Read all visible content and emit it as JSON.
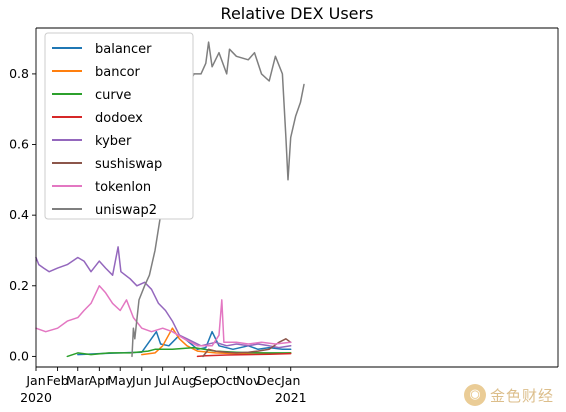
{
  "chart_data": {
    "type": "line",
    "title": "Relative DEX Users",
    "xlabel": "",
    "ylabel": "",
    "xlim": [
      "2020-01-01",
      "2022-01-20"
    ],
    "ylim": [
      -0.03,
      0.93
    ],
    "yticks": [
      0.0,
      0.2,
      0.4,
      0.6,
      0.8
    ],
    "ytick_labels": [
      "0.0",
      "0.2",
      "0.4",
      "0.6",
      "0.8"
    ],
    "xticks": [
      {
        "date": "2020-01-01",
        "label": "Jan",
        "sublabel": "2020"
      },
      {
        "date": "2020-02-01",
        "label": "Feb",
        "sublabel": ""
      },
      {
        "date": "2020-03-01",
        "label": "Mar",
        "sublabel": ""
      },
      {
        "date": "2020-04-01",
        "label": "Apr",
        "sublabel": ""
      },
      {
        "date": "2020-05-01",
        "label": "May",
        "sublabel": ""
      },
      {
        "date": "2020-06-01",
        "label": "Jun",
        "sublabel": ""
      },
      {
        "date": "2020-07-01",
        "label": "Jul",
        "sublabel": ""
      },
      {
        "date": "2020-08-01",
        "label": "Aug",
        "sublabel": ""
      },
      {
        "date": "2020-09-01",
        "label": "Sep",
        "sublabel": ""
      },
      {
        "date": "2020-10-01",
        "label": "Oct",
        "sublabel": ""
      },
      {
        "date": "2020-11-01",
        "label": "Nov",
        "sublabel": ""
      },
      {
        "date": "2020-12-01",
        "label": "Dec",
        "sublabel": ""
      },
      {
        "date": "2021-01-01",
        "label": "Jan",
        "sublabel": "2021"
      }
    ],
    "grid": false,
    "legend_position": "top-left",
    "series": [
      {
        "name": "balancer",
        "color": "#1f77b4",
        "points": [
          [
            "2020-03-01",
            0.005
          ],
          [
            "2020-04-01",
            0.008
          ],
          [
            "2020-05-01",
            0.01
          ],
          [
            "2020-06-01",
            0.012
          ],
          [
            "2020-06-22",
            0.07
          ],
          [
            "2020-06-28",
            0.035
          ],
          [
            "2020-07-10",
            0.03
          ],
          [
            "2020-07-25",
            0.06
          ],
          [
            "2020-08-05",
            0.045
          ],
          [
            "2020-08-20",
            0.02
          ],
          [
            "2020-09-01",
            0.025
          ],
          [
            "2020-09-10",
            0.07
          ],
          [
            "2020-09-20",
            0.03
          ],
          [
            "2020-10-10",
            0.02
          ],
          [
            "2020-11-01",
            0.03
          ],
          [
            "2020-11-15",
            0.02
          ],
          [
            "2020-12-01",
            0.025
          ],
          [
            "2020-12-20",
            0.02
          ],
          [
            "2021-01-01",
            0.02
          ]
        ]
      },
      {
        "name": "bancor",
        "color": "#ff7f0e",
        "points": [
          [
            "2020-06-01",
            0.005
          ],
          [
            "2020-06-20",
            0.01
          ],
          [
            "2020-07-01",
            0.03
          ],
          [
            "2020-07-15",
            0.08
          ],
          [
            "2020-07-25",
            0.05
          ],
          [
            "2020-08-05",
            0.03
          ],
          [
            "2020-08-20",
            0.015
          ],
          [
            "2020-09-15",
            0.01
          ],
          [
            "2020-10-15",
            0.008
          ],
          [
            "2020-11-15",
            0.01
          ],
          [
            "2020-12-15",
            0.008
          ],
          [
            "2021-01-01",
            0.01
          ]
        ]
      },
      {
        "name": "curve",
        "color": "#2ca02c",
        "points": [
          [
            "2020-02-15",
            0.0
          ],
          [
            "2020-03-01",
            0.01
          ],
          [
            "2020-03-20",
            0.005
          ],
          [
            "2020-04-15",
            0.01
          ],
          [
            "2020-05-15",
            0.01
          ],
          [
            "2020-06-10",
            0.015
          ],
          [
            "2020-06-20",
            0.02
          ],
          [
            "2020-07-15",
            0.02
          ],
          [
            "2020-08-15",
            0.025
          ],
          [
            "2020-09-15",
            0.015
          ],
          [
            "2020-10-15",
            0.012
          ],
          [
            "2020-11-15",
            0.01
          ],
          [
            "2020-12-15",
            0.01
          ],
          [
            "2021-01-01",
            0.01
          ]
        ]
      },
      {
        "name": "dodoex",
        "color": "#d62728",
        "points": [
          [
            "2020-08-20",
            0.0
          ],
          [
            "2020-09-01",
            0.002
          ],
          [
            "2020-10-01",
            0.004
          ],
          [
            "2020-11-01",
            0.005
          ],
          [
            "2020-12-01",
            0.006
          ],
          [
            "2021-01-01",
            0.008
          ]
        ]
      },
      {
        "name": "kyber",
        "color": "#9467bd",
        "points": [
          [
            "2020-01-01",
            0.28
          ],
          [
            "2020-01-05",
            0.26
          ],
          [
            "2020-01-12",
            0.25
          ],
          [
            "2020-01-20",
            0.24
          ],
          [
            "2020-02-01",
            0.25
          ],
          [
            "2020-02-15",
            0.26
          ],
          [
            "2020-03-01",
            0.28
          ],
          [
            "2020-03-10",
            0.27
          ],
          [
            "2020-03-20",
            0.24
          ],
          [
            "2020-04-01",
            0.27
          ],
          [
            "2020-04-10",
            0.25
          ],
          [
            "2020-04-20",
            0.23
          ],
          [
            "2020-04-28",
            0.31
          ],
          [
            "2020-05-02",
            0.24
          ],
          [
            "2020-05-15",
            0.22
          ],
          [
            "2020-05-25",
            0.2
          ],
          [
            "2020-06-05",
            0.21
          ],
          [
            "2020-06-15",
            0.19
          ],
          [
            "2020-06-25",
            0.15
          ],
          [
            "2020-07-05",
            0.13
          ],
          [
            "2020-07-15",
            0.1
          ],
          [
            "2020-07-25",
            0.06
          ],
          [
            "2020-08-05",
            0.05
          ],
          [
            "2020-08-15",
            0.04
          ],
          [
            "2020-08-25",
            0.03
          ],
          [
            "2020-09-15",
            0.04
          ],
          [
            "2020-10-01",
            0.03
          ],
          [
            "2020-10-15",
            0.035
          ],
          [
            "2020-11-01",
            0.03
          ],
          [
            "2020-11-15",
            0.035
          ],
          [
            "2020-12-01",
            0.03
          ],
          [
            "2020-12-15",
            0.025
          ],
          [
            "2021-01-01",
            0.03
          ]
        ]
      },
      {
        "name": "sushiswap",
        "color": "#8c564b",
        "points": [
          [
            "2020-08-28",
            0.0
          ],
          [
            "2020-09-05",
            0.02
          ],
          [
            "2020-09-15",
            0.015
          ],
          [
            "2020-10-01",
            0.012
          ],
          [
            "2020-10-15",
            0.01
          ],
          [
            "2020-11-01",
            0.012
          ],
          [
            "2020-11-15",
            0.015
          ],
          [
            "2020-12-01",
            0.02
          ],
          [
            "2020-12-15",
            0.04
          ],
          [
            "2020-12-25",
            0.05
          ],
          [
            "2021-01-01",
            0.04
          ]
        ]
      },
      {
        "name": "tokenlon",
        "color": "#e377c2",
        "points": [
          [
            "2020-01-01",
            0.08
          ],
          [
            "2020-01-15",
            0.07
          ],
          [
            "2020-02-01",
            0.08
          ],
          [
            "2020-02-15",
            0.1
          ],
          [
            "2020-03-01",
            0.11
          ],
          [
            "2020-03-10",
            0.13
          ],
          [
            "2020-03-20",
            0.15
          ],
          [
            "2020-04-01",
            0.2
          ],
          [
            "2020-04-10",
            0.18
          ],
          [
            "2020-04-20",
            0.15
          ],
          [
            "2020-05-01",
            0.13
          ],
          [
            "2020-05-10",
            0.16
          ],
          [
            "2020-05-20",
            0.11
          ],
          [
            "2020-06-01",
            0.08
          ],
          [
            "2020-06-15",
            0.07
          ],
          [
            "2020-07-01",
            0.08
          ],
          [
            "2020-07-15",
            0.07
          ],
          [
            "2020-08-01",
            0.05
          ],
          [
            "2020-08-20",
            0.03
          ],
          [
            "2020-09-10",
            0.03
          ],
          [
            "2020-09-20",
            0.06
          ],
          [
            "2020-09-24",
            0.16
          ],
          [
            "2020-09-27",
            0.04
          ],
          [
            "2020-10-15",
            0.04
          ],
          [
            "2020-11-01",
            0.035
          ],
          [
            "2020-11-20",
            0.04
          ],
          [
            "2020-12-10",
            0.035
          ],
          [
            "2021-01-01",
            0.04
          ]
        ]
      },
      {
        "name": "uniswap2",
        "color": "#7f7f7f",
        "points": [
          [
            "2020-05-18",
            0.0
          ],
          [
            "2020-05-20",
            0.08
          ],
          [
            "2020-05-22",
            0.05
          ],
          [
            "2020-05-28",
            0.16
          ],
          [
            "2020-06-05",
            0.2
          ],
          [
            "2020-06-12",
            0.23
          ],
          [
            "2020-06-20",
            0.3
          ],
          [
            "2020-06-28",
            0.4
          ],
          [
            "2020-07-05",
            0.5
          ],
          [
            "2020-07-15",
            0.6
          ],
          [
            "2020-07-25",
            0.7
          ],
          [
            "2020-08-05",
            0.76
          ],
          [
            "2020-08-15",
            0.8
          ],
          [
            "2020-08-25",
            0.8
          ],
          [
            "2020-09-01",
            0.83
          ],
          [
            "2020-09-05",
            0.89
          ],
          [
            "2020-09-10",
            0.82
          ],
          [
            "2020-09-20",
            0.86
          ],
          [
            "2020-10-01",
            0.8
          ],
          [
            "2020-10-05",
            0.87
          ],
          [
            "2020-10-15",
            0.85
          ],
          [
            "2020-11-01",
            0.84
          ],
          [
            "2020-11-10",
            0.86
          ],
          [
            "2020-11-20",
            0.8
          ],
          [
            "2020-12-01",
            0.78
          ],
          [
            "2020-12-10",
            0.85
          ],
          [
            "2020-12-20",
            0.8
          ],
          [
            "2020-12-25",
            0.62
          ],
          [
            "2020-12-28",
            0.5
          ],
          [
            "2021-01-01",
            0.62
          ],
          [
            "2021-01-08",
            0.68
          ],
          [
            "2021-01-15",
            0.72
          ],
          [
            "2021-01-20",
            0.77
          ]
        ]
      }
    ]
  },
  "watermark": {
    "text": "金色财经"
  }
}
